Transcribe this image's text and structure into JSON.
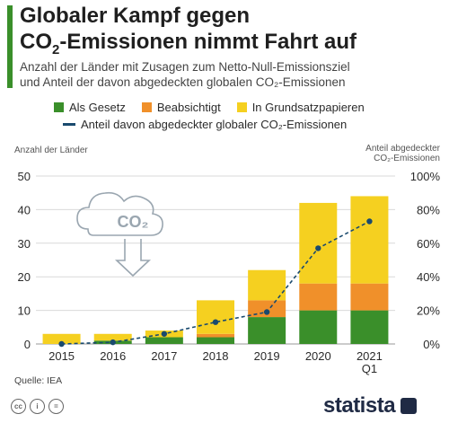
{
  "header": {
    "title_line1": "Globaler Kampf gegen",
    "title_line2_pre": "CO",
    "title_line2_sub": "2",
    "title_line2_post": "-Emissionen nimmt Fahrt auf",
    "subtitle_line1": "Anzahl der Länder mit Zusagen zum Netto-Null-Emissionsziel",
    "subtitle_line2": "und Anteil der davon abgedeckten globalen CO₂-Emissionen"
  },
  "legend": {
    "items": [
      "Als Gesetz",
      "Beabsichtigt",
      "In Grundsatzpapieren"
    ],
    "line_item": "Anteil davon abgedeckter globaler CO₂-Emissionen"
  },
  "illustration": {
    "cloud_text": "CO₂",
    "icon": "cloud-arrow-icon"
  },
  "source": "Quelle: IEA",
  "brand": "statista",
  "colors": {
    "gesetz": "#3a8f2a",
    "beabsichtigt": "#f0902a",
    "grundsatz": "#f5d020",
    "line": "#1a4a6e",
    "grid": "#d9d9d9",
    "accent": "#3a8f2a"
  },
  "chart_data": {
    "type": "bar",
    "stacked": true,
    "categories": [
      "2015",
      "2016",
      "2017",
      "2018",
      "2019",
      "2020",
      "2021\nQ1"
    ],
    "series": [
      {
        "name": "Als Gesetz",
        "values": [
          0,
          1,
          2,
          2,
          8,
          10,
          10
        ]
      },
      {
        "name": "Beabsichtigt",
        "values": [
          0,
          0,
          0,
          1,
          5,
          8,
          8
        ]
      },
      {
        "name": "In Grundsatzpapieren",
        "values": [
          3,
          2,
          2,
          10,
          9,
          24,
          26
        ]
      }
    ],
    "line_series": {
      "name": "Anteil davon abgedeckter globaler CO₂-Emissionen",
      "values": [
        0,
        1,
        6,
        13,
        19,
        57,
        73
      ],
      "unit": "%"
    },
    "ylabel": "Anzahl der Länder",
    "y2label": "Anteil abgedeckter CO₂-Emissionen",
    "ylim": [
      0,
      50
    ],
    "y2lim": [
      0,
      100
    ],
    "yticks": [
      "0",
      "10",
      "20",
      "30",
      "40",
      "50"
    ],
    "y2ticks": [
      "0%",
      "20%",
      "40%",
      "60%",
      "80%",
      "100%"
    ],
    "grid": true,
    "legend_position": "top"
  }
}
